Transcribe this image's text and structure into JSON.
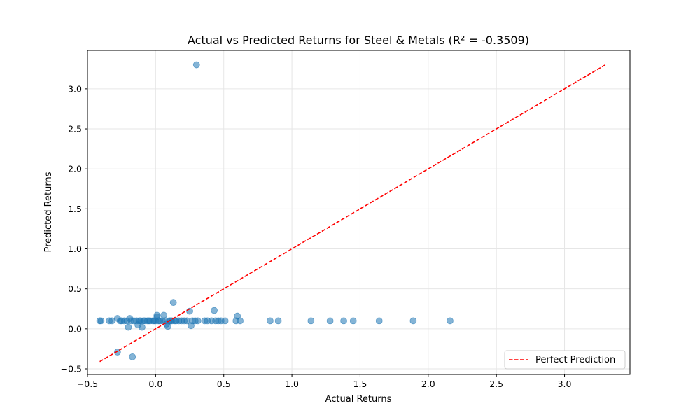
{
  "chart_data": {
    "type": "scatter",
    "title": "Actual vs Predicted Returns for Steel & Metals (R² = -0.3509)",
    "xlabel": "Actual Returns",
    "ylabel": "Predicted Returns",
    "xlim": [
      -0.5,
      3.48
    ],
    "ylim": [
      -0.57,
      3.48
    ],
    "xticks": [
      -0.5,
      0.0,
      0.5,
      1.0,
      1.5,
      2.0,
      2.5,
      3.0
    ],
    "xtick_labels": [
      "−0.5",
      "0.0",
      "0.5",
      "1.0",
      "1.5",
      "2.0",
      "2.5",
      "3.0"
    ],
    "yticks": [
      -0.5,
      0.0,
      0.5,
      1.0,
      1.5,
      2.0,
      2.5,
      3.0
    ],
    "ytick_labels": [
      "−0.5",
      "0.0",
      "0.5",
      "1.0",
      "1.5",
      "2.0",
      "2.5",
      "3.0"
    ],
    "grid": true,
    "legend_position": "bottom-right",
    "point_color": "#1f77b4",
    "line_color": "#ff0000",
    "series": [
      {
        "type": "scatter",
        "points": [
          [
            -0.41,
            0.1
          ],
          [
            -0.4,
            0.1
          ],
          [
            -0.34,
            0.1
          ],
          [
            -0.32,
            0.1
          ],
          [
            -0.28,
            0.13
          ],
          [
            -0.26,
            0.1
          ],
          [
            -0.25,
            0.1
          ],
          [
            -0.23,
            0.1
          ],
          [
            -0.21,
            0.1
          ],
          [
            -0.2,
            0.02
          ],
          [
            -0.19,
            0.13
          ],
          [
            -0.18,
            0.1
          ],
          [
            -0.16,
            0.1
          ],
          [
            -0.14,
            0.1
          ],
          [
            -0.13,
            0.05
          ],
          [
            -0.12,
            0.1
          ],
          [
            -0.11,
            0.1
          ],
          [
            -0.1,
            0.02
          ],
          [
            -0.09,
            0.1
          ],
          [
            -0.08,
            0.1
          ],
          [
            -0.06,
            0.1
          ],
          [
            -0.05,
            0.1
          ],
          [
            -0.04,
            0.1
          ],
          [
            -0.02,
            0.1
          ],
          [
            -0.01,
            0.1
          ],
          [
            0.0,
            0.1
          ],
          [
            0.01,
            0.17
          ],
          [
            0.01,
            0.15
          ],
          [
            0.02,
            0.1
          ],
          [
            0.03,
            0.1
          ],
          [
            0.05,
            0.1
          ],
          [
            0.06,
            0.17
          ],
          [
            0.07,
            0.1
          ],
          [
            0.08,
            0.06
          ],
          [
            0.09,
            0.03
          ],
          [
            0.1,
            0.1
          ],
          [
            0.11,
            0.1
          ],
          [
            0.12,
            0.1
          ],
          [
            0.13,
            0.33
          ],
          [
            0.14,
            0.1
          ],
          [
            0.15,
            0.1
          ],
          [
            0.17,
            0.1
          ],
          [
            0.19,
            0.1
          ],
          [
            0.21,
            0.1
          ],
          [
            0.23,
            0.1
          ],
          [
            0.25,
            0.22
          ],
          [
            0.26,
            0.04
          ],
          [
            0.27,
            0.1
          ],
          [
            0.29,
            0.1
          ],
          [
            0.3,
            3.3
          ],
          [
            0.31,
            0.1
          ],
          [
            0.36,
            0.1
          ],
          [
            0.38,
            0.1
          ],
          [
            0.41,
            0.1
          ],
          [
            0.43,
            0.23
          ],
          [
            0.44,
            0.1
          ],
          [
            0.46,
            0.1
          ],
          [
            0.48,
            0.1
          ],
          [
            0.51,
            0.1
          ],
          [
            0.59,
            0.1
          ],
          [
            0.6,
            0.16
          ],
          [
            0.62,
            0.1
          ],
          [
            0.84,
            0.1
          ],
          [
            0.9,
            0.1
          ],
          [
            1.14,
            0.1
          ],
          [
            1.28,
            0.1
          ],
          [
            1.38,
            0.1
          ],
          [
            1.45,
            0.1
          ],
          [
            1.64,
            0.1
          ],
          [
            1.89,
            0.1
          ],
          [
            2.16,
            0.1
          ],
          [
            -0.28,
            -0.29
          ],
          [
            -0.17,
            -0.35
          ]
        ]
      },
      {
        "type": "line",
        "name": "Perfect Prediction",
        "style": "dashed",
        "x": [
          -0.41,
          3.3
        ],
        "y": [
          -0.41,
          3.3
        ]
      }
    ]
  }
}
